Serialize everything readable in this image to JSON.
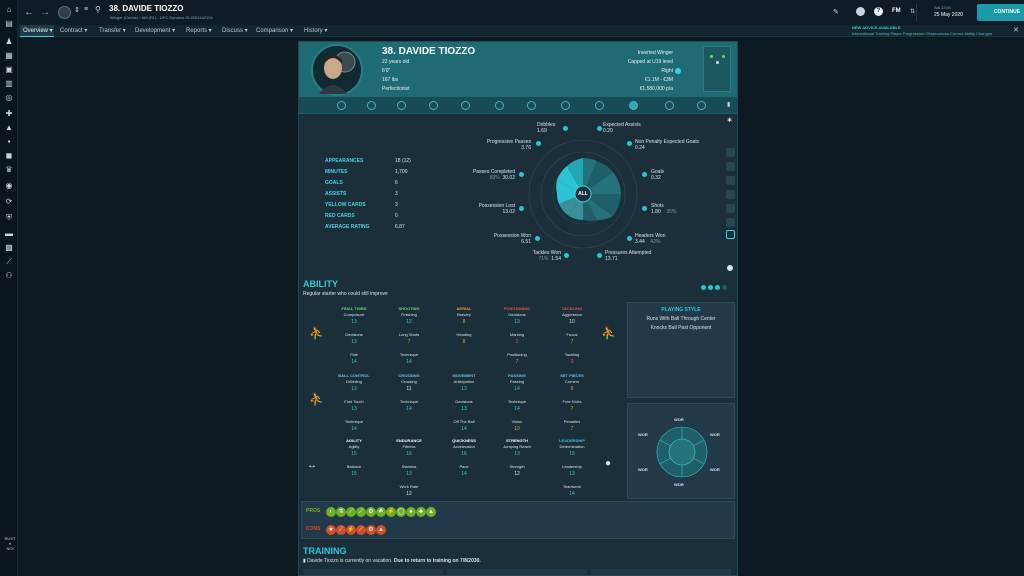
{
  "topbar": {
    "title": "38. DAVIDE TIOZZO",
    "subtitle": "Winger (Centre) / AM (RL) - DFC Dynamo ID:2003442104",
    "date_time": "Sat 23:00",
    "date": "25 May 2020",
    "fm_label": "FM",
    "continue_label": "CONTINUE"
  },
  "nav": {
    "items": [
      "Overview",
      "Contract",
      "Transfer",
      "Development",
      "Reports",
      "Discuss",
      "Comparison",
      "History"
    ]
  },
  "advice": {
    "title": "NEW ADVICE AVAILABLE",
    "text": "International Training Player Progression Observations Current Ability Changes"
  },
  "player": {
    "name": "38. DAVIDE TIOZZO",
    "age": "22 years old",
    "height": "6'0\"",
    "weight": "167 lbs",
    "personality": "Perfectionist",
    "role": "Inverted Winger",
    "caps": "Capped at U19 level",
    "foot": "Right",
    "value": "€1.1M - €3M",
    "wage": "€1,580,000 p/a"
  },
  "stats": [
    {
      "label": "APPEARANCES",
      "value": "18 (12)"
    },
    {
      "label": "MINUTES",
      "value": "1,700"
    },
    {
      "label": "GOALS",
      "value": "6"
    },
    {
      "label": "ASSISTS",
      "value": "3"
    },
    {
      "label": "YELLOW CARDS",
      "value": "3"
    },
    {
      "label": "RED CARDS",
      "value": "0"
    },
    {
      "label": "AVERAGE RATING",
      "value": "6.87"
    }
  ],
  "radar": {
    "center_label": "ALL",
    "items": [
      {
        "label": "Dribbles",
        "value": "1.69",
        "pct": ""
      },
      {
        "label": "Expected Assists",
        "value": "0.20",
        "pct": ""
      },
      {
        "label": "Progressive Passes",
        "value": "3.76",
        "pct": ""
      },
      {
        "label": "Non Penalty Expected Goals",
        "value": "0.24",
        "pct": ""
      },
      {
        "label": "Passes Completed",
        "value": "30.02",
        "pct": "80%"
      },
      {
        "label": "Goals",
        "value": "0.32",
        "pct": ""
      },
      {
        "label": "Possession Lost",
        "value": "13.02",
        "pct": ""
      },
      {
        "label": "Shots",
        "value": "1.80",
        "pct": "35%"
      },
      {
        "label": "Possession Won",
        "value": "6.51",
        "pct": ""
      },
      {
        "label": "Headers Won",
        "value": "3.44",
        "pct": "42%"
      },
      {
        "label": "Tackles Won",
        "value": "1.54",
        "pct": "71%"
      },
      {
        "label": "Pressures Attempted",
        "value": "13.71",
        "pct": ""
      }
    ]
  },
  "ability": {
    "title": "ABILITY",
    "subtitle": "Regular starter who could still improve"
  },
  "attributes": [
    {
      "head": "FINAL THIRD",
      "color": "#6fd66a",
      "items": [
        [
          "Composure",
          "13",
          "#33c7d8"
        ],
        [
          "Decisions",
          "13",
          "#33c7d8"
        ],
        [
          "Flair",
          "14",
          "#33c7d8"
        ]
      ]
    },
    {
      "head": "SHOOTING",
      "color": "#6fd66a",
      "items": [
        [
          "Finishing",
          "12",
          "#33c7d8"
        ],
        [
          "Long Shots",
          "7",
          "#f0a020"
        ],
        [
          "Technique",
          "14",
          "#33c7d8"
        ]
      ]
    },
    {
      "head": "AERIAL",
      "color": "#f0a020",
      "items": [
        [
          "Bravery",
          "8",
          "#f0a020"
        ],
        [
          "Heading",
          "8",
          "#f0a020"
        ]
      ]
    },
    {
      "head": "POSITIONING",
      "color": "#e05a4a",
      "items": [
        [
          "Decisions",
          "13",
          "#33c7d8"
        ],
        [
          "Marking",
          "2",
          "#e05a4a"
        ],
        [
          "Positioning",
          "7",
          "#f0a020"
        ]
      ]
    },
    {
      "head": "TACKLING",
      "color": "#e05a4a",
      "items": [
        [
          "Aggression",
          "10",
          "#d8e4ea"
        ],
        [
          "Focus",
          "7",
          "#f0a020"
        ],
        [
          "Tackling",
          "3",
          "#e05a4a"
        ]
      ]
    },
    {
      "head": "BALL CONTROL",
      "color": "#6fc0e8",
      "items": [
        [
          "Dribbling",
          "13",
          "#33c7d8"
        ],
        [
          "First Touch",
          "13",
          "#33c7d8"
        ],
        [
          "Technique",
          "14",
          "#33c7d8"
        ]
      ]
    },
    {
      "head": "CROSSING",
      "color": "#6fc0e8",
      "items": [
        [
          "Crossing",
          "11",
          "#d8e4ea"
        ],
        [
          "Technique",
          "14",
          "#33c7d8"
        ]
      ]
    },
    {
      "head": "MOVEMENT",
      "color": "#6fc0e8",
      "items": [
        [
          "Anticipation",
          "13",
          "#33c7d8"
        ],
        [
          "Decisions",
          "13",
          "#33c7d8"
        ],
        [
          "Off The Ball",
          "14",
          "#33c7d8"
        ]
      ]
    },
    {
      "head": "PASSING",
      "color": "#6fc0e8",
      "items": [
        [
          "Passing",
          "14",
          "#33c7d8"
        ],
        [
          "Technique",
          "14",
          "#33c7d8"
        ],
        [
          "Vision",
          "10",
          "#f0a020"
        ]
      ]
    },
    {
      "head": "SET PIECES",
      "color": "#6fc0e8",
      "items": [
        [
          "Corners",
          "6",
          "#f0a020"
        ],
        [
          "Free Kicks",
          "7",
          "#f0a020"
        ],
        [
          "Penalties",
          "7",
          "#f0a020"
        ]
      ]
    },
    {
      "head": "AGILITY",
      "color": "#ffffff",
      "items": [
        [
          "Agility",
          "15",
          "#33c7d8"
        ],
        [
          "Balance",
          "15",
          "#33c7d8"
        ]
      ]
    },
    {
      "head": "ENDURANCE",
      "color": "#ffffff",
      "items": [
        [
          "Fitness",
          "16",
          "#33c7d8"
        ],
        [
          "Stamina",
          "13",
          "#33c7d8"
        ],
        [
          "Work Rate",
          "12",
          "#d8e4ea"
        ]
      ]
    },
    {
      "head": "QUICKNESS",
      "color": "#ffffff",
      "items": [
        [
          "Acceleration",
          "16",
          "#33c7d8"
        ],
        [
          "Pace",
          "14",
          "#33c7d8"
        ]
      ]
    },
    {
      "head": "STRENGTH",
      "color": "#ffffff",
      "items": [
        [
          "Jumping Reach",
          "13",
          "#33c7d8"
        ],
        [
          "Strength",
          "12",
          "#d8e4ea"
        ]
      ]
    },
    {
      "head": "LEADERSHIP",
      "color": "#33c7d8",
      "items": [
        [
          "Determination",
          "15",
          "#33c7d8"
        ],
        [
          "Leadership",
          "13",
          "#33c7d8"
        ],
        [
          "Teamwork",
          "14",
          "#33c7d8"
        ]
      ]
    }
  ],
  "playing_style": {
    "title": "PLAYING STYLE",
    "lines": [
      "Runs With Ball Through Center",
      "Knocks Ball Past Opponent"
    ]
  },
  "position_chart": {
    "labels": [
      "WOR",
      "WOR",
      "WOR",
      "WOR",
      "WOR",
      "WOR"
    ]
  },
  "pros_cons": {
    "pros_label": "PROS",
    "cons_label": "CONS",
    "pros_color": "#6fb026",
    "cons_color": "#d0502a"
  },
  "training": {
    "title": "TRAINING",
    "text_a": "Davide Tiozzo is currently on vacation.",
    "text_b": "Due to return to training on 7/8/2030."
  },
  "colors": {
    "accent": "#33c7d8",
    "header_bg": "#1e6b73",
    "panel_bg": "#1a2f3a"
  }
}
